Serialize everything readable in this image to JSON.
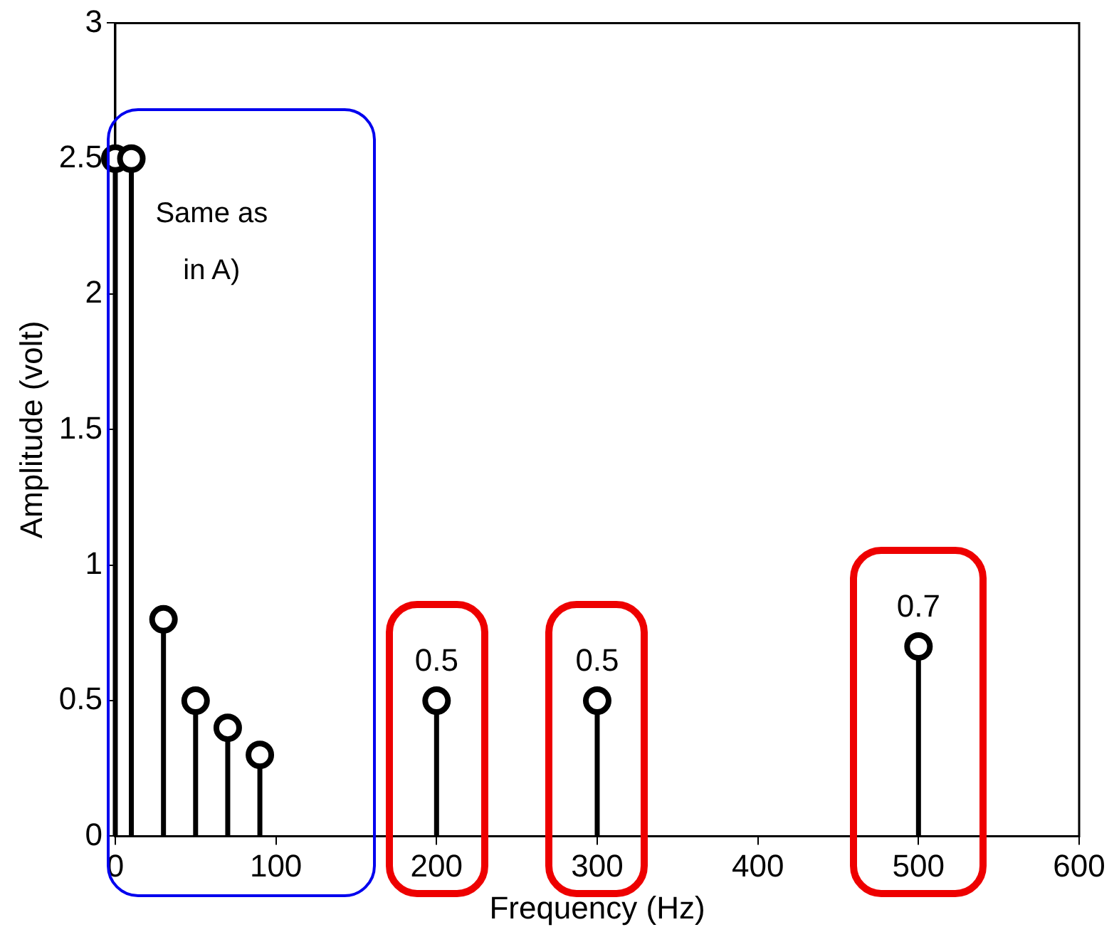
{
  "chart_data": {
    "type": "lollipop",
    "xlabel": "Frequency (Hz)",
    "ylabel": "Amplitude (volt)",
    "x": [
      0,
      10,
      30,
      50,
      70,
      90,
      200,
      300,
      500
    ],
    "values": [
      2.5,
      2.5,
      0.8,
      0.5,
      0.4,
      0.3,
      0.5,
      0.5,
      0.7
    ],
    "value_labels": [
      null,
      null,
      null,
      null,
      null,
      null,
      "0.5",
      "0.5",
      "0.7"
    ],
    "color": "#000000",
    "marker": "circle",
    "xlim": [
      0,
      600
    ],
    "xticks": [
      0,
      100,
      200,
      300,
      400,
      500,
      600
    ],
    "ylim": [
      0,
      3
    ],
    "yticks": [
      0,
      0.5,
      1,
      1.5,
      2,
      2.5,
      3
    ],
    "grid": false,
    "legend": false,
    "annotations": [
      "Same as in A)"
    ]
  }
}
